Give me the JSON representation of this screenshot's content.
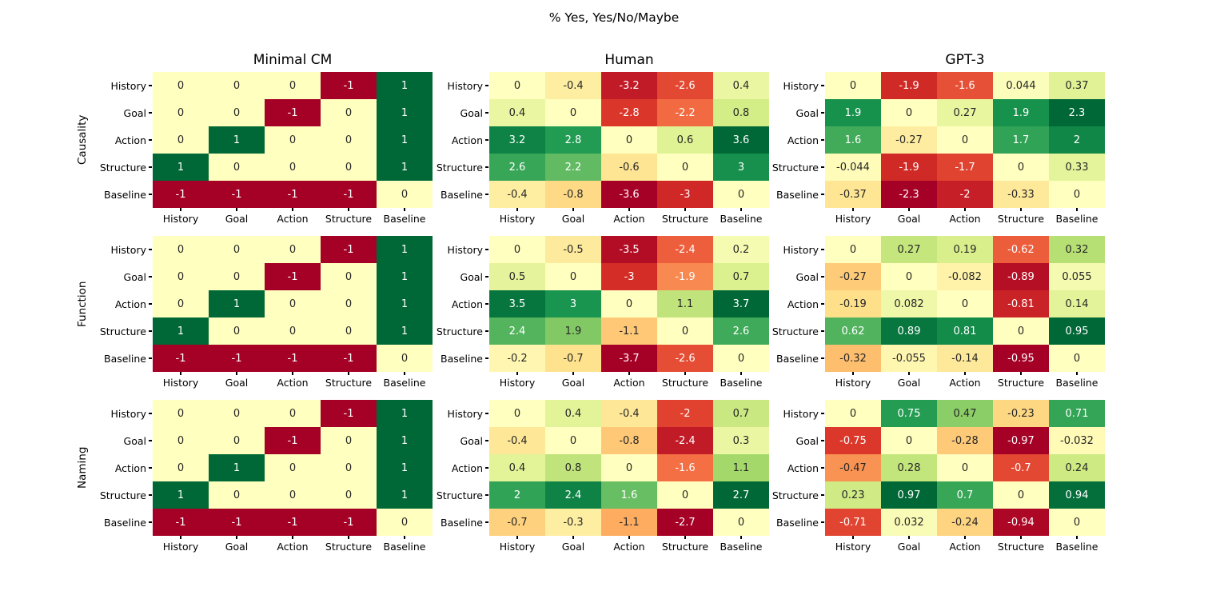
{
  "title": "% Yes, Yes/No/Maybe",
  "chart_data": {
    "type": "heatmap",
    "suptitle": "% Yes, Yes/No/Maybe",
    "column_titles": [
      "Minimal CM",
      "Human",
      "GPT-3"
    ],
    "row_titles": [
      "Causality",
      "Function",
      "Naming"
    ],
    "tick_labels": [
      "History",
      "Goal",
      "Action",
      "Structure",
      "Baseline"
    ],
    "colormap": "RdYlGn",
    "colormap_anchors": [
      "#a50026",
      "#d73027",
      "#f46d43",
      "#fdae61",
      "#fee08b",
      "#ffffbf",
      "#d9ef8b",
      "#a6d96a",
      "#66bd63",
      "#1a9850",
      "#006837"
    ],
    "normalization": "per-grid symmetric: vmin=-max|v|, vmax=+max|v|",
    "annotation_text_colors": {
      "dark": "#262626",
      "light": "#ffffff"
    },
    "legend_position": "none",
    "grids": [
      {
        "row": "Causality",
        "column": "Minimal CM",
        "cells": [
          [
            "0",
            "0",
            "0",
            "-1",
            "1"
          ],
          [
            "0",
            "0",
            "-1",
            "0",
            "1"
          ],
          [
            "0",
            "1",
            "0",
            "0",
            "1"
          ],
          [
            "1",
            "0",
            "0",
            "0",
            "1"
          ],
          [
            "-1",
            "-1",
            "-1",
            "-1",
            "0"
          ]
        ]
      },
      {
        "row": "Causality",
        "column": "Human",
        "cells": [
          [
            "0",
            "-0.4",
            "-3.2",
            "-2.6",
            "0.4"
          ],
          [
            "0.4",
            "0",
            "-2.8",
            "-2.2",
            "0.8"
          ],
          [
            "3.2",
            "2.8",
            "0",
            "0.6",
            "3.6"
          ],
          [
            "2.6",
            "2.2",
            "-0.6",
            "0",
            "3"
          ],
          [
            "-0.4",
            "-0.8",
            "-3.6",
            "-3",
            "0"
          ]
        ]
      },
      {
        "row": "Causality",
        "column": "GPT-3",
        "cells": [
          [
            "0",
            "-1.9",
            "-1.6",
            "0.044",
            "0.37"
          ],
          [
            "1.9",
            "0",
            "0.27",
            "1.9",
            "2.3"
          ],
          [
            "1.6",
            "-0.27",
            "0",
            "1.7",
            "2"
          ],
          [
            "-0.044",
            "-1.9",
            "-1.7",
            "0",
            "0.33"
          ],
          [
            "-0.37",
            "-2.3",
            "-2",
            "-0.33",
            "0"
          ]
        ]
      },
      {
        "row": "Function",
        "column": "Minimal CM",
        "cells": [
          [
            "0",
            "0",
            "0",
            "-1",
            "1"
          ],
          [
            "0",
            "0",
            "-1",
            "0",
            "1"
          ],
          [
            "0",
            "1",
            "0",
            "0",
            "1"
          ],
          [
            "1",
            "0",
            "0",
            "0",
            "1"
          ],
          [
            "-1",
            "-1",
            "-1",
            "-1",
            "0"
          ]
        ]
      },
      {
        "row": "Function",
        "column": "Human",
        "cells": [
          [
            "0",
            "-0.5",
            "-3.5",
            "-2.4",
            "0.2"
          ],
          [
            "0.5",
            "0",
            "-3",
            "-1.9",
            "0.7"
          ],
          [
            "3.5",
            "3",
            "0",
            "1.1",
            "3.7"
          ],
          [
            "2.4",
            "1.9",
            "-1.1",
            "0",
            "2.6"
          ],
          [
            "-0.2",
            "-0.7",
            "-3.7",
            "-2.6",
            "0"
          ]
        ]
      },
      {
        "row": "Function",
        "column": "GPT-3",
        "cells": [
          [
            "0",
            "0.27",
            "0.19",
            "-0.62",
            "0.32"
          ],
          [
            "-0.27",
            "0",
            "-0.082",
            "-0.89",
            "0.055"
          ],
          [
            "-0.19",
            "0.082",
            "0",
            "-0.81",
            "0.14"
          ],
          [
            "0.62",
            "0.89",
            "0.81",
            "0",
            "0.95"
          ],
          [
            "-0.32",
            "-0.055",
            "-0.14",
            "-0.95",
            "0"
          ]
        ]
      },
      {
        "row": "Naming",
        "column": "Minimal CM",
        "cells": [
          [
            "0",
            "0",
            "0",
            "-1",
            "1"
          ],
          [
            "0",
            "0",
            "-1",
            "0",
            "1"
          ],
          [
            "0",
            "1",
            "0",
            "0",
            "1"
          ],
          [
            "1",
            "0",
            "0",
            "0",
            "1"
          ],
          [
            "-1",
            "-1",
            "-1",
            "-1",
            "0"
          ]
        ]
      },
      {
        "row": "Naming",
        "column": "Human",
        "cells": [
          [
            "0",
            "0.4",
            "-0.4",
            "-2",
            "0.7"
          ],
          [
            "-0.4",
            "0",
            "-0.8",
            "-2.4",
            "0.3"
          ],
          [
            "0.4",
            "0.8",
            "0",
            "-1.6",
            "1.1"
          ],
          [
            "2",
            "2.4",
            "1.6",
            "0",
            "2.7"
          ],
          [
            "-0.7",
            "-0.3",
            "-1.1",
            "-2.7",
            "0"
          ]
        ]
      },
      {
        "row": "Naming",
        "column": "GPT-3",
        "cells": [
          [
            "0",
            "0.75",
            "0.47",
            "-0.23",
            "0.71"
          ],
          [
            "-0.75",
            "0",
            "-0.28",
            "-0.97",
            "-0.032"
          ],
          [
            "-0.47",
            "0.28",
            "0",
            "-0.7",
            "0.24"
          ],
          [
            "0.23",
            "0.97",
            "0.7",
            "0",
            "0.94"
          ],
          [
            "-0.71",
            "0.032",
            "-0.24",
            "-0.94",
            "0"
          ]
        ]
      }
    ]
  }
}
